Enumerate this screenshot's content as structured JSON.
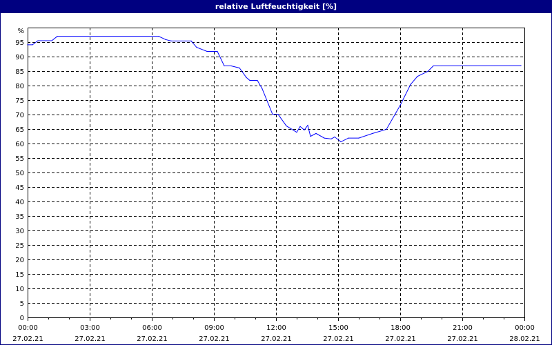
{
  "window": {
    "title": "relative Luftfeuchtigkeit [%]"
  },
  "chart_data": {
    "type": "line",
    "title": "relative Luftfeuchtigkeit [%]",
    "ylabel": "%",
    "ylim": [
      0,
      100
    ],
    "yticks": [
      0,
      5,
      10,
      15,
      20,
      25,
      30,
      35,
      40,
      45,
      50,
      55,
      60,
      65,
      70,
      75,
      80,
      85,
      90,
      95
    ],
    "xlim": [
      "27.02.21 00:00",
      "28.02.21 00:00"
    ],
    "xticks": [
      {
        "time": "00:00",
        "date": "27.02.21"
      },
      {
        "time": "03:00",
        "date": "27.02.21"
      },
      {
        "time": "06:00",
        "date": "27.02.21"
      },
      {
        "time": "09:00",
        "date": "27.02.21"
      },
      {
        "time": "12:00",
        "date": "27.02.21"
      },
      {
        "time": "15:00",
        "date": "27.02.21"
      },
      {
        "time": "18:00",
        "date": "27.02.21"
      },
      {
        "time": "21:00",
        "date": "27.02.21"
      },
      {
        "time": "00:00",
        "date": "28.02.21"
      }
    ],
    "grid": true,
    "line_color": "#0000ff",
    "series": [
      {
        "x": [
          "00:00",
          "00:14",
          "00:30",
          "01:10",
          "01:26",
          "06:20",
          "06:40",
          "06:56",
          "07:54",
          "08:10",
          "08:40",
          "09:10",
          "09:30",
          "09:50",
          "10:14",
          "10:34",
          "10:44",
          "11:06",
          "11:20",
          "11:50",
          "12:06",
          "12:30",
          "13:00",
          "13:10",
          "13:22",
          "13:32",
          "13:40",
          "13:56",
          "14:20",
          "14:40",
          "14:50",
          "15:08",
          "15:30",
          "16:00",
          "16:40",
          "17:20",
          "18:00",
          "18:30",
          "18:50",
          "19:20",
          "19:36",
          "23:50"
        ],
        "y": [
          94.2,
          94.2,
          95.6,
          95.6,
          97.1,
          97.1,
          96,
          95.5,
          95.5,
          93.3,
          91.9,
          91.9,
          86.9,
          86.9,
          86.2,
          82.9,
          81.9,
          81.9,
          79,
          70.2,
          70.2,
          66.2,
          64,
          66,
          64.8,
          66.4,
          62.6,
          63.6,
          62,
          61.7,
          62.4,
          60.7,
          62,
          62,
          63.6,
          65,
          73.3,
          80.5,
          83.3,
          85,
          86.9,
          87
        ]
      }
    ]
  }
}
